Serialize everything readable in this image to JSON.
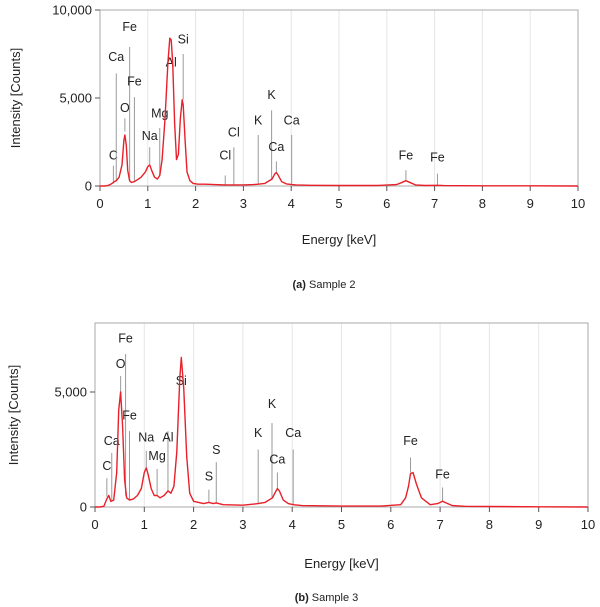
{
  "chart_data": [
    {
      "id": "a",
      "type": "line",
      "title": "",
      "caption_tag": "(a)",
      "caption_text": "Sample 2",
      "xlabel": "Energy [keV]",
      "ylabel": "Intensity [Counts]",
      "xlim": [
        0,
        10
      ],
      "ylim": [
        0,
        10000
      ],
      "xticks": [
        0,
        1,
        2,
        3,
        4,
        5,
        6,
        7,
        8,
        9,
        10
      ],
      "xtick_labels": [
        "0",
        "1",
        "2",
        "3",
        "4",
        "5",
        "6",
        "7",
        "8",
        "9",
        "10"
      ],
      "yticks": [
        0,
        5000,
        10000
      ],
      "ytick_labels": [
        "0",
        "5,000",
        "10,000"
      ],
      "grid": "vertical",
      "line_color": "#e8202a",
      "series": [
        {
          "x": [
            0.0,
            0.1,
            0.18,
            0.22,
            0.26,
            0.28,
            0.3,
            0.34,
            0.4,
            0.46,
            0.5,
            0.52,
            0.55,
            0.58,
            0.62,
            0.66,
            0.72,
            0.78,
            0.86,
            0.95,
            1.0,
            1.04,
            1.08,
            1.14,
            1.2,
            1.25,
            1.3,
            1.36,
            1.42,
            1.46,
            1.49,
            1.52,
            1.56,
            1.6,
            1.64,
            1.68,
            1.72,
            1.74,
            1.78,
            1.82,
            1.88,
            1.95,
            2.05,
            2.2,
            2.4,
            2.62,
            2.8,
            3.0,
            3.2,
            3.31,
            3.45,
            3.6,
            3.66,
            3.69,
            3.72,
            3.8,
            3.9,
            4.01,
            4.1,
            4.4,
            5.0,
            5.8,
            6.2,
            6.3,
            6.4,
            6.5,
            6.6,
            6.8,
            7.06,
            7.2,
            8.0,
            9.0,
            10.0
          ],
          "y": [
            0,
            0,
            40,
            90,
            160,
            200,
            250,
            300,
            500,
            1200,
            2600,
            2900,
            2300,
            900,
            300,
            200,
            250,
            350,
            500,
            800,
            1100,
            1200,
            900,
            500,
            400,
            600,
            1500,
            3800,
            7000,
            8400,
            8300,
            7000,
            3600,
            1500,
            1800,
            3800,
            4900,
            4600,
            2600,
            800,
            300,
            150,
            100,
            100,
            80,
            60,
            60,
            60,
            80,
            100,
            150,
            400,
            700,
            760,
            650,
            250,
            120,
            80,
            60,
            40,
            30,
            30,
            80,
            180,
            300,
            180,
            60,
            30,
            40,
            20,
            10,
            10,
            0
          ]
        }
      ],
      "peaks": [
        {
          "label": "C",
          "x": 0.28,
          "label_y": 1500,
          "line_y1": 200,
          "line_y2": 1150
        },
        {
          "label": "O",
          "x": 0.52,
          "label_y": 4200,
          "line_y1": 3100,
          "line_y2": 3850
        },
        {
          "label": "Ca",
          "x": 0.34,
          "label_y": 7100,
          "line_y1": 300,
          "line_y2": 6400
        },
        {
          "label": "Fe",
          "x": 0.62,
          "label_y": 8800,
          "line_y1": 300,
          "line_y2": 7900
        },
        {
          "label": "Fe",
          "x": 0.72,
          "label_y": 5700,
          "line_y1": 300,
          "line_y2": 5050
        },
        {
          "label": "Na",
          "x": 1.04,
          "label_y": 2600,
          "line_y1": 1250,
          "line_y2": 2200
        },
        {
          "label": "Mg",
          "x": 1.25,
          "label_y": 3900,
          "line_y1": 600,
          "line_y2": 3300
        },
        {
          "label": "Al",
          "x": 1.49,
          "label_y": 6800,
          "line_y1": 8400,
          "line_y2": 8400
        },
        {
          "label": "Si",
          "x": 1.74,
          "label_y": 8100,
          "line_y1": 4900,
          "line_y2": 7500
        },
        {
          "label": "Cl",
          "x": 2.62,
          "label_y": 1500,
          "line_y1": 60,
          "line_y2": 600
        },
        {
          "label": "Cl",
          "x": 2.8,
          "label_y": 2800,
          "line_y1": 60,
          "line_y2": 2200
        },
        {
          "label": "K",
          "x": 3.31,
          "label_y": 3500,
          "line_y1": 100,
          "line_y2": 2900
        },
        {
          "label": "K",
          "x": 3.59,
          "label_y": 4950,
          "line_y1": 400,
          "line_y2": 4300
        },
        {
          "label": "Ca",
          "x": 3.69,
          "label_y": 2000,
          "line_y1": 760,
          "line_y2": 1400
        },
        {
          "label": "Ca",
          "x": 4.01,
          "label_y": 3500,
          "line_y1": 80,
          "line_y2": 2900
        },
        {
          "label": "Fe",
          "x": 6.4,
          "label_y": 1500,
          "line_y1": 300,
          "line_y2": 900
        },
        {
          "label": "Fe",
          "x": 7.06,
          "label_y": 1400,
          "line_y1": 40,
          "line_y2": 700
        }
      ]
    },
    {
      "id": "b",
      "type": "line",
      "title": "",
      "caption_tag": "(b)",
      "caption_text": "Sample 3",
      "xlabel": "Energy [keV]",
      "ylabel": "Intensity [Counts]",
      "xlim": [
        0,
        10
      ],
      "ylim": [
        0,
        8000
      ],
      "xticks": [
        0,
        1,
        2,
        3,
        4,
        5,
        6,
        7,
        8,
        9,
        10
      ],
      "xtick_labels": [
        "0",
        "1",
        "2",
        "3",
        "4",
        "5",
        "6",
        "7",
        "8",
        "9",
        "10"
      ],
      "yticks": [
        0,
        5000
      ],
      "ytick_labels": [
        "0",
        "5,000"
      ],
      "grid": "vertical",
      "line_color": "#e8202a",
      "series": [
        {
          "x": [
            0.0,
            0.1,
            0.18,
            0.24,
            0.28,
            0.32,
            0.38,
            0.44,
            0.48,
            0.52,
            0.56,
            0.6,
            0.64,
            0.7,
            0.78,
            0.86,
            0.94,
            1.0,
            1.04,
            1.08,
            1.14,
            1.2,
            1.26,
            1.32,
            1.4,
            1.48,
            1.54,
            1.6,
            1.66,
            1.72,
            1.75,
            1.8,
            1.86,
            1.92,
            2.0,
            2.2,
            2.31,
            2.4,
            2.46,
            2.6,
            3.0,
            3.31,
            3.45,
            3.6,
            3.66,
            3.7,
            3.74,
            3.82,
            3.92,
            4.02,
            4.2,
            5.0,
            5.8,
            6.2,
            6.3,
            6.36,
            6.4,
            6.45,
            6.52,
            6.62,
            6.8,
            6.95,
            7.05,
            7.12,
            7.25,
            7.5,
            8.0,
            9.0,
            10.0
          ],
          "y": [
            0,
            0,
            30,
            350,
            500,
            250,
            300,
            1500,
            4200,
            5000,
            3500,
            1200,
            400,
            300,
            350,
            500,
            800,
            1500,
            1700,
            1400,
            800,
            500,
            500,
            400,
            500,
            700,
            600,
            900,
            2400,
            5600,
            6500,
            5200,
            2200,
            600,
            250,
            150,
            200,
            150,
            180,
            100,
            80,
            150,
            200,
            400,
            650,
            800,
            700,
            300,
            150,
            100,
            60,
            40,
            40,
            100,
            400,
            900,
            1450,
            1500,
            1000,
            400,
            100,
            150,
            250,
            180,
            60,
            30,
            20,
            10,
            0
          ]
        }
      ],
      "peaks": [
        {
          "label": "C",
          "x": 0.24,
          "label_y": 1600,
          "line_y1": 450,
          "line_y2": 1250
        },
        {
          "label": "Ca",
          "x": 0.34,
          "label_y": 2700,
          "line_y1": 300,
          "line_y2": 2350
        },
        {
          "label": "O",
          "x": 0.52,
          "label_y": 6050,
          "line_y1": 5000,
          "line_y2": 5700
        },
        {
          "label": "Fe",
          "x": 0.62,
          "label_y": 7150,
          "line_y1": 500,
          "line_y2": 6650
        },
        {
          "label": "Fe",
          "x": 0.7,
          "label_y": 3800,
          "line_y1": 300,
          "line_y2": 3300
        },
        {
          "label": "Na",
          "x": 1.04,
          "label_y": 2850,
          "line_y1": 1700,
          "line_y2": 2450
        },
        {
          "label": "Mg",
          "x": 1.26,
          "label_y": 2050,
          "line_y1": 500,
          "line_y2": 1650
        },
        {
          "label": "Al",
          "x": 1.48,
          "label_y": 2850,
          "line_y1": 700,
          "line_y2": 3300
        },
        {
          "label": "Si",
          "x": 1.75,
          "label_y": 5300,
          "line_y1": 6500,
          "line_y2": 6500
        },
        {
          "label": "S",
          "x": 2.31,
          "label_y": 1150,
          "line_y1": 200,
          "line_y2": 750
        },
        {
          "label": "S",
          "x": 2.46,
          "label_y": 2300,
          "line_y1": 180,
          "line_y2": 1950
        },
        {
          "label": "K",
          "x": 3.31,
          "label_y": 3050,
          "line_y1": 150,
          "line_y2": 2500
        },
        {
          "label": "K",
          "x": 3.59,
          "label_y": 4300,
          "line_y1": 400,
          "line_y2": 3650
        },
        {
          "label": "Ca",
          "x": 3.7,
          "label_y": 1900,
          "line_y1": 800,
          "line_y2": 1500
        },
        {
          "label": "Ca",
          "x": 4.02,
          "label_y": 3050,
          "line_y1": 100,
          "line_y2": 2500
        },
        {
          "label": "Fe",
          "x": 6.4,
          "label_y": 2700,
          "line_y1": 1500,
          "line_y2": 2150
        },
        {
          "label": "Fe",
          "x": 7.05,
          "label_y": 1250,
          "line_y1": 250,
          "line_y2": 850
        }
      ]
    }
  ]
}
